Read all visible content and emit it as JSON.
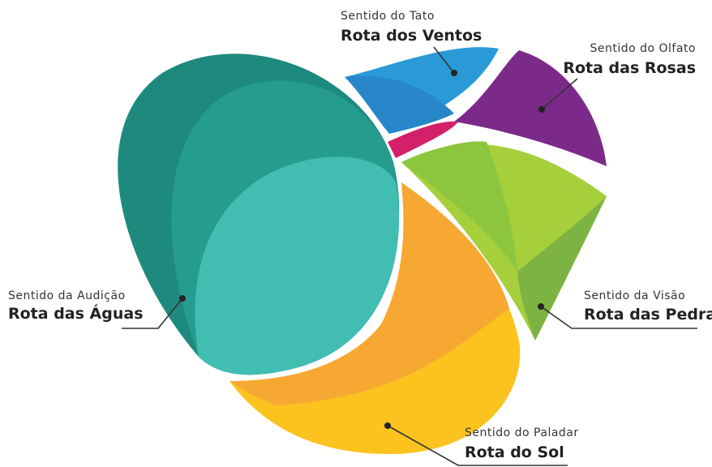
{
  "labels": [
    {
      "sense": "Sentido do Tato",
      "route": "Rota dos Ventos"
    },
    {
      "sense": "Sentido do Olfato",
      "route": "Rota das Rosas"
    },
    {
      "sense": "Sentido da Audição",
      "route": "Rota das Águas"
    },
    {
      "sense": "Sentido da Visão",
      "route": "Rota das Pedras"
    },
    {
      "sense": "Sentido do Paladar",
      "route": "Rota do Sol"
    }
  ]
}
